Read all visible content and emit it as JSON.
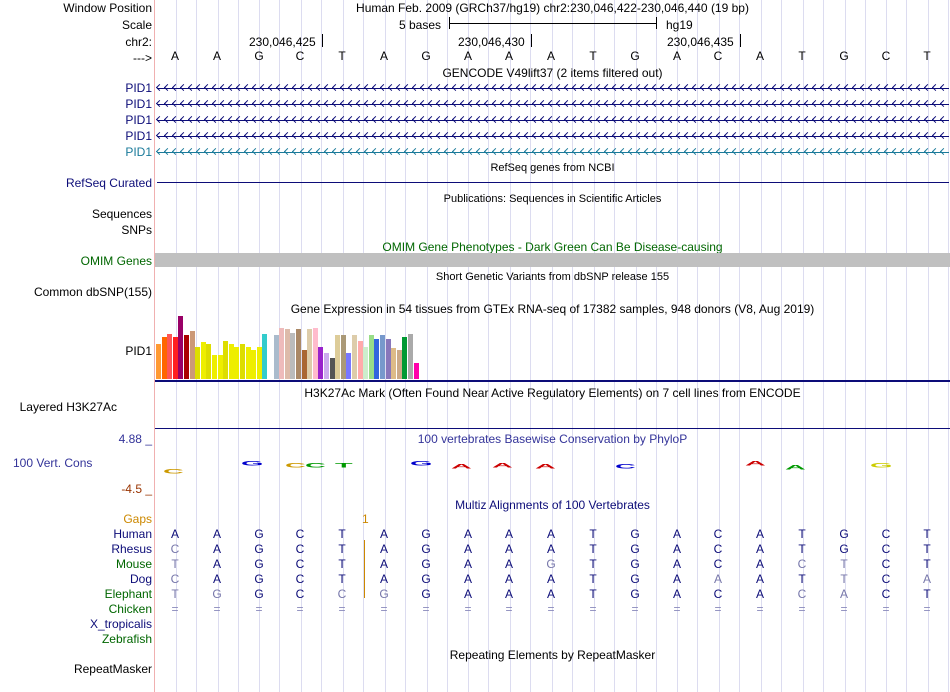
{
  "header": {
    "window_position_label": "Window Position",
    "window_position_text": "Human Feb. 2009 (GRCh37/hg19)    chr2:230,046,422-230,046,440 (19 bp)",
    "scale_label": "Scale",
    "scale_bases": "5 bases",
    "scale_assembly": "hg19",
    "chrom_label": "chr2:",
    "positions": [
      "230,046,425",
      "230,046,430",
      "230,046,435"
    ],
    "strand_label": "--->",
    "sequence": [
      "A",
      "A",
      "G",
      "C",
      "T",
      "A",
      "G",
      "A",
      "A",
      "A",
      "T",
      "G",
      "A",
      "C",
      "A",
      "T",
      "G",
      "C",
      "T"
    ]
  },
  "gencode": {
    "title": "GENCODE V49lift37 (2 items filtered out)",
    "rows": [
      {
        "label": "PID1",
        "color": "#0c0c78"
      },
      {
        "label": "PID1",
        "color": "#0c0c78"
      },
      {
        "label": "PID1",
        "color": "#0c0c78"
      },
      {
        "label": "PID1",
        "color": "#0c0c78"
      },
      {
        "label": "PID1",
        "color": "#1a7a9a"
      }
    ]
  },
  "refseq": {
    "title": "RefSeq genes from NCBI",
    "label": "RefSeq Curated"
  },
  "publications": {
    "title": "Publications: Sequences in Scientific Articles",
    "label_seq": "Sequences",
    "label_snps": "SNPs"
  },
  "omim": {
    "title": "OMIM Gene Phenotypes - Dark Green Can Be Disease-causing",
    "label": "OMIM Genes"
  },
  "dbsnp": {
    "title": "Short Genetic Variants from dbSNP release 155",
    "label": "Common dbSNP(155)"
  },
  "gtex": {
    "title": "Gene Expression in 54 tissues from GTEx RNA-seq of 17382 samples, 948 donors (V8, Aug 2019)",
    "label": "PID1",
    "bars": [
      {
        "v": 0.55,
        "c": "#ff9933"
      },
      {
        "v": 0.65,
        "c": "#ff6600"
      },
      {
        "v": 0.7,
        "c": "#ff5555"
      },
      {
        "v": 0.65,
        "c": "#ff2020"
      },
      {
        "v": 0.98,
        "c": "#990066"
      },
      {
        "v": 0.68,
        "c": "#aa0000"
      },
      {
        "v": 0.75,
        "c": "#cc9977"
      },
      {
        "v": 0.5,
        "c": "#dddd00"
      },
      {
        "v": 0.58,
        "c": "#eeee00"
      },
      {
        "v": 0.55,
        "c": "#dddd00"
      },
      {
        "v": 0.38,
        "c": "#eeee00"
      },
      {
        "v": 0.38,
        "c": "#eeee00"
      },
      {
        "v": 0.6,
        "c": "#dddd00"
      },
      {
        "v": 0.55,
        "c": "#eeee00"
      },
      {
        "v": 0.5,
        "c": "#eeee00"
      },
      {
        "v": 0.55,
        "c": "#dddd00"
      },
      {
        "v": 0.5,
        "c": "#eeee00"
      },
      {
        "v": 0.45,
        "c": "#eeee00"
      },
      {
        "v": 0.5,
        "c": "#eeee00"
      },
      {
        "v": 0.7,
        "c": "#33cccc"
      },
      {
        "v": 0.0,
        "c": "#ffffff"
      },
      {
        "v": 0.68,
        "c": "#aabbcc"
      },
      {
        "v": 0.8,
        "c": "#eebbbb"
      },
      {
        "v": 0.78,
        "c": "#ddbbaa"
      },
      {
        "v": 0.72,
        "c": "#bbbbbb"
      },
      {
        "v": 0.78,
        "c": "#aa8866"
      },
      {
        "v": 0.45,
        "c": "#aa6633"
      },
      {
        "v": 0.78,
        "c": "#ddccaa"
      },
      {
        "v": 0.8,
        "c": "#ffbbcc"
      },
      {
        "v": 0.5,
        "c": "#9922cc"
      },
      {
        "v": 0.4,
        "c": "#ccaaee"
      },
      {
        "v": 0.33,
        "c": "#555555"
      },
      {
        "v": 0.68,
        "c": "#ddcc99"
      },
      {
        "v": 0.68,
        "c": "#aa9977"
      },
      {
        "v": 0.4,
        "c": "#7777ff"
      },
      {
        "v": 0.68,
        "c": "#ddccaa"
      },
      {
        "v": 0.6,
        "c": "#ffaaaa"
      },
      {
        "v": 0.5,
        "c": "#cceecc"
      },
      {
        "v": 0.68,
        "c": "#99dd88"
      },
      {
        "v": 0.62,
        "c": "#3366dd"
      },
      {
        "v": 0.68,
        "c": "#7799cc"
      },
      {
        "v": 0.62,
        "c": "#8877bb"
      },
      {
        "v": 0.48,
        "c": "#ddbb88"
      },
      {
        "v": 0.45,
        "c": "#ccaa88"
      },
      {
        "v": 0.65,
        "c": "#009933"
      },
      {
        "v": 0.7,
        "c": "#aaaaaa"
      },
      {
        "v": 0.25,
        "c": "#ff00aa"
      }
    ]
  },
  "h3k27ac": {
    "title": "H3K27Ac Mark (Often Found Near Active Regulatory Elements) on 7 cell lines from ENCODE",
    "label": "Layered H3K27Ac"
  },
  "conservation": {
    "title": "100 vertebrates Basewise Conservation by PhyloP",
    "label": "100 Vert. Cons",
    "max": "4.88 _",
    "min": "-4.5 _",
    "title_color": "#333399",
    "min_color": "#993300"
  },
  "multiz": {
    "title": "Multiz Alignments of 100 Vertebrates",
    "gaps_label": "Gaps",
    "gap_count": "1",
    "species": [
      {
        "name": "Human",
        "color": "#0c0c78",
        "seq": [
          "A",
          "A",
          "G",
          "C",
          "T",
          "A",
          "G",
          "A",
          "A",
          "A",
          "T",
          "G",
          "A",
          "C",
          "A",
          "T",
          "G",
          "C",
          "T"
        ]
      },
      {
        "name": "Rhesus",
        "color": "#0c0c78",
        "seq": [
          "C",
          "A",
          "G",
          "C",
          "T",
          "A",
          "G",
          "A",
          "A",
          "A",
          "T",
          "G",
          "A",
          "C",
          "A",
          "T",
          "G",
          "C",
          "T"
        ]
      },
      {
        "name": "Mouse",
        "color": "#006600",
        "seq": [
          "T",
          "A",
          "G",
          "C",
          "T",
          "A",
          "G",
          "A",
          "A",
          "G",
          "T",
          "G",
          "A",
          "C",
          "A",
          "C",
          "T",
          "C",
          "T"
        ]
      },
      {
        "name": "Dog",
        "color": "#0c0c78",
        "seq": [
          "C",
          "A",
          "G",
          "C",
          "T",
          "A",
          "G",
          "A",
          "A",
          "A",
          "T",
          "G",
          "A",
          "A",
          "A",
          "T",
          "T",
          "C",
          "A"
        ]
      },
      {
        "name": "Elephant",
        "color": "#006600",
        "seq": [
          "T",
          "G",
          "G",
          "C",
          "C",
          "G",
          "G",
          "A",
          "A",
          "A",
          "T",
          "G",
          "A",
          "C",
          "A",
          "C",
          "A",
          "C",
          "T"
        ]
      },
      {
        "name": "Chicken",
        "color": "#006600",
        "seq": [
          "=",
          "=",
          "=",
          "=",
          "=",
          "=",
          "=",
          "=",
          "=",
          "=",
          "=",
          "=",
          "=",
          "=",
          "=",
          "=",
          "=",
          "=",
          "="
        ]
      },
      {
        "name": "X_tropicalis",
        "color": "#0c0c78",
        "seq": []
      },
      {
        "name": "Zebrafish",
        "color": "#006600",
        "seq": []
      }
    ]
  },
  "repeatmasker": {
    "title": "Repeating Elements by RepeatMasker",
    "label": "RepeatMasker"
  }
}
